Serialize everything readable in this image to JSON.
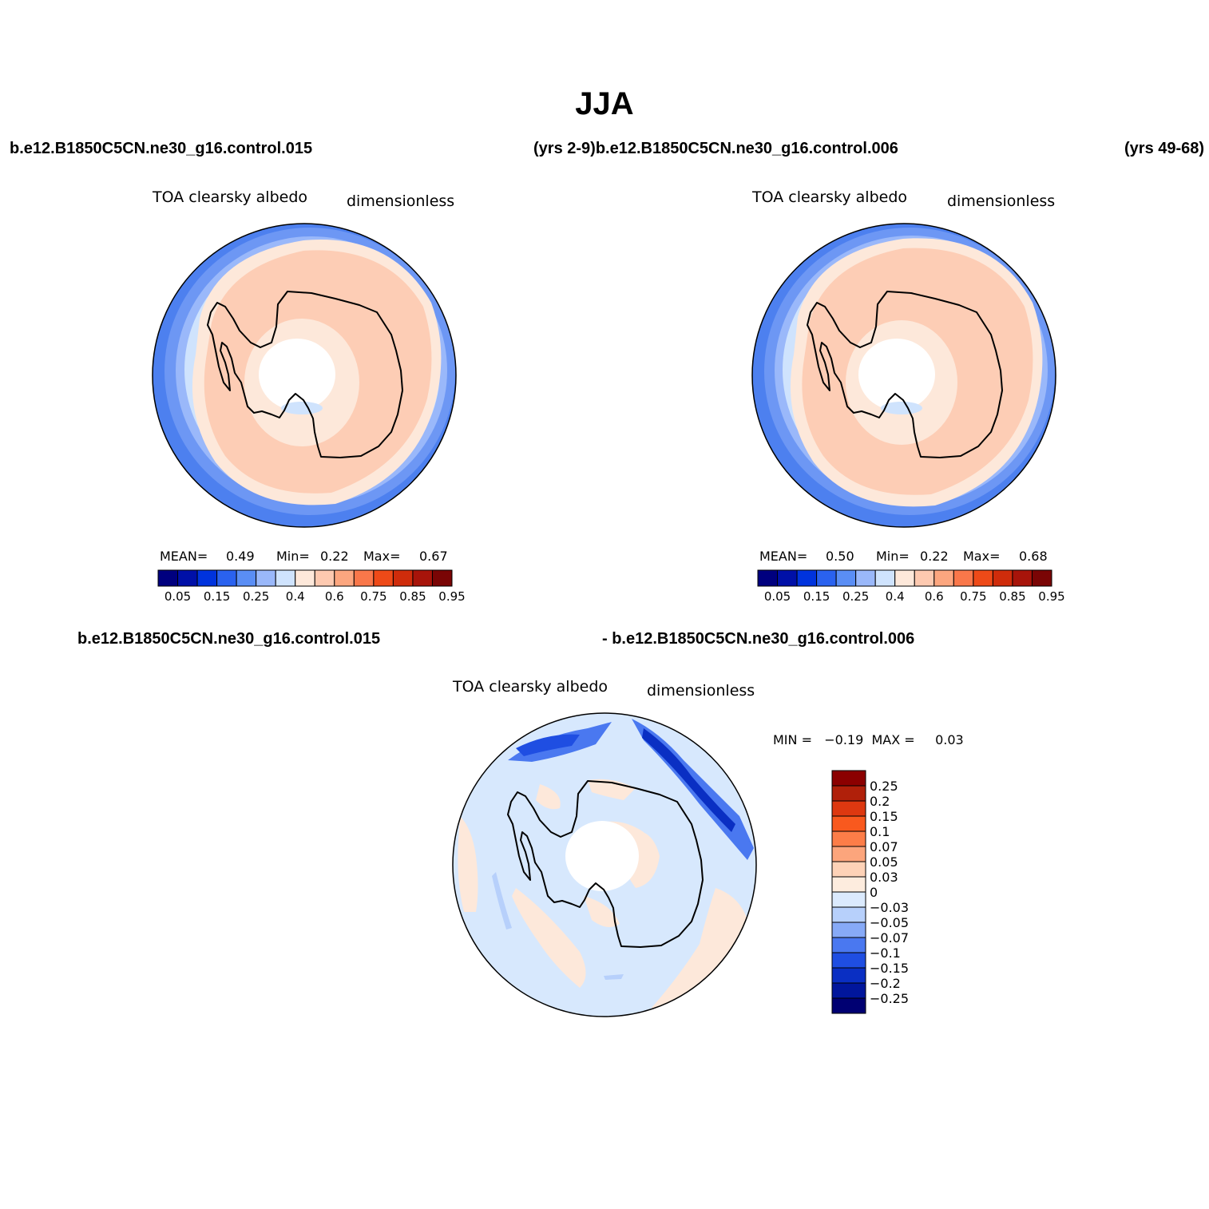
{
  "title": "JJA",
  "header": {
    "left_case": "b.e12.B1850C5CN.ne30_g16.control.015",
    "middle": "(yrs 2-9)b.e12.B1850C5CN.ne30_g16.control.006",
    "right": "(yrs 49-68)"
  },
  "diff_header": {
    "left": "b.e12.B1850C5CN.ne30_g16.control.015",
    "right": "- b.e12.B1850C5CN.ne30_g16.control.006"
  },
  "panels": [
    {
      "variable": "TOA clearsky albedo",
      "units": "dimensionless",
      "mean_label": "MEAN=",
      "mean": "0.49",
      "min_label": "Min=",
      "min": "0.22",
      "max_label": "Max=",
      "max": "0.67"
    },
    {
      "variable": "TOA clearsky albedo",
      "units": "dimensionless",
      "mean_label": "MEAN=",
      "mean": "0.50",
      "min_label": "Min=",
      "min": "0.22",
      "max_label": "Max=",
      "max": "0.68"
    }
  ],
  "diff_panel": {
    "variable": "TOA clearsky albedo",
    "units": "dimensionless",
    "minmax_text": "MIN =   −0.19  MAX =     0.03"
  },
  "colorbar_main": {
    "colors": [
      "#00007f",
      "#0010a8",
      "#0033dd",
      "#2a62ef",
      "#5a8ef5",
      "#9ab8fa",
      "#cfe3fd",
      "#fde8da",
      "#fdc9b0",
      "#fca67f",
      "#f9774a",
      "#ee4a18",
      "#cf2c0b",
      "#a7140a",
      "#7a0505"
    ],
    "tick_labels": [
      "0.05",
      "0.15",
      "0.25",
      "0.4",
      "0.6",
      "0.75",
      "0.85",
      "0.95"
    ]
  },
  "colorbar_diff": {
    "colors_top_to_bottom": [
      "#8b0000",
      "#b0200a",
      "#dd3810",
      "#f9591e",
      "#fc7d48",
      "#fca57c",
      "#fdd2b7",
      "#fdecde",
      "#dbeafd",
      "#b7d0fb",
      "#87aaf7",
      "#4a78f0",
      "#1f4ee2",
      "#0a2fc3",
      "#01169c",
      "#000072"
    ],
    "tick_labels": [
      "0.25",
      "0.2",
      "0.15",
      "0.1",
      "0.07",
      "0.05",
      "0.03",
      "0",
      "−0.03",
      "−0.05",
      "−0.07",
      "−0.1",
      "−0.15",
      "−0.2",
      "−0.25"
    ]
  }
}
